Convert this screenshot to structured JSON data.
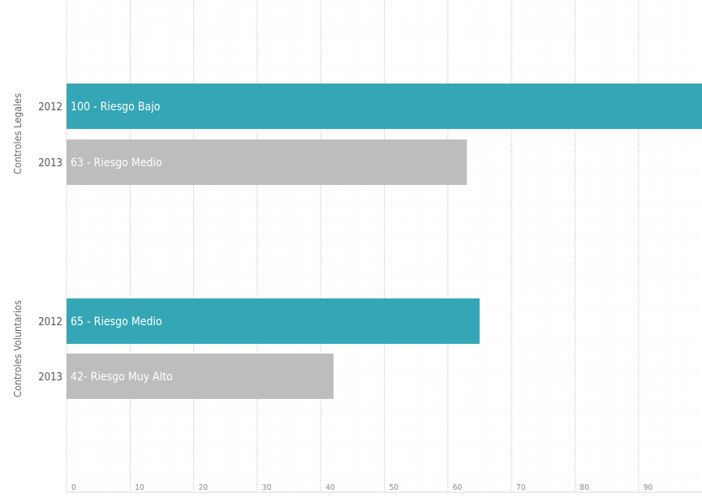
{
  "chart_data": {
    "type": "bar",
    "orientation": "horizontal",
    "xlim": [
      0,
      100
    ],
    "x_ticks": [
      0,
      10,
      20,
      30,
      40,
      50,
      60,
      70,
      80,
      90
    ],
    "grid": true,
    "colors": {
      "2012": "#35a6b6",
      "2013": "#bdbdbd"
    },
    "groups": [
      {
        "name": "Controles Legales",
        "bars": [
          {
            "year": "2012",
            "value": 100,
            "label": "100 - Riesgo Bajo"
          },
          {
            "year": "2013",
            "value": 63,
            "label": "63 - Riesgo Medio"
          }
        ]
      },
      {
        "name": "Controles Voluntarios",
        "bars": [
          {
            "year": "2012",
            "value": 65,
            "label": "65 - Riesgo Medio"
          },
          {
            "year": "2013",
            "value": 42,
            "label": "42- Riesgo Muy Alto"
          }
        ]
      }
    ]
  }
}
